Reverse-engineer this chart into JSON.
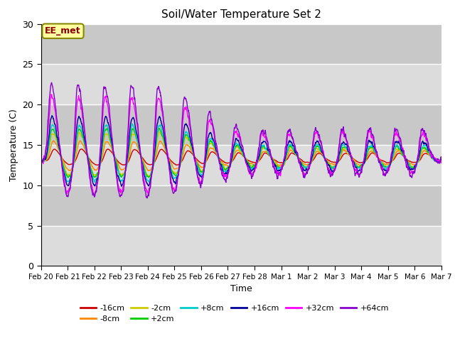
{
  "title": "Soil/Water Temperature Set 2",
  "xlabel": "Time",
  "ylabel": "Temperature (C)",
  "ylim": [
    0,
    30
  ],
  "xlim": [
    0,
    15
  ],
  "plot_bg_color": "#e8e8e8",
  "fig_bg_color": "#ffffff",
  "annotation_text": "EE_met",
  "annotation_color": "#8B0000",
  "annotation_bg": "#ffffa0",
  "annotation_border": "#888800",
  "tick_labels": [
    "Feb 20",
    "Feb 21",
    "Feb 22",
    "Feb 23",
    "Feb 24",
    "Feb 25",
    "Feb 26",
    "Feb 27",
    "Feb 28",
    "Mar 1",
    "Mar 2",
    "Mar 3",
    "Mar 4",
    "Mar 5",
    "Mar 6",
    "Mar 7"
  ],
  "series_labels": [
    "-16cm",
    "-8cm",
    "-2cm",
    "+2cm",
    "+8cm",
    "+16cm",
    "+32cm",
    "+64cm"
  ],
  "series_colors": [
    "#cc0000",
    "#ff8800",
    "#cccc00",
    "#00cc00",
    "#00cccc",
    "#000099",
    "#ff00ff",
    "#8800cc"
  ],
  "grid_color": "#ffffff",
  "yticks": [
    0,
    5,
    10,
    15,
    20,
    25,
    30
  ],
  "band1_color": "#dcdcdc",
  "band2_color": "#c8c8c8"
}
